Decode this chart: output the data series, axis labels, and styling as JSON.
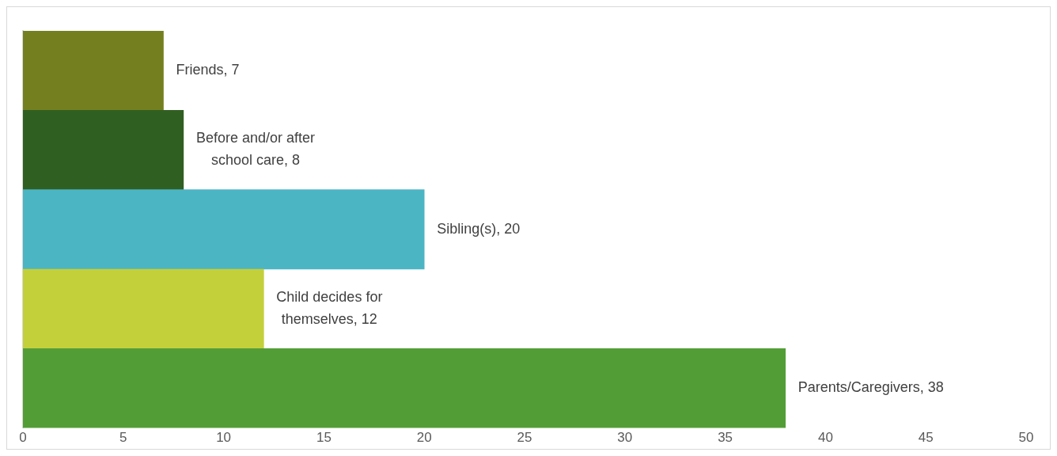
{
  "chart_data": {
    "type": "bar",
    "orientation": "horizontal",
    "categories": [
      null,
      null,
      null,
      null,
      null
    ],
    "value_labels": [
      "Friends, 7",
      "Before and/or after school care, 8",
      "Sibling(s), 20",
      "Child decides for themselves, 12",
      "Parents/Caregivers, 38"
    ],
    "values": [
      7,
      8,
      20,
      12,
      38
    ],
    "colors": [
      "#748020",
      "#305f22",
      "#4bb5c4",
      "#c4d03a",
      "#539d37"
    ],
    "xlim": [
      0,
      50
    ],
    "xticks": [
      0,
      5,
      10,
      15,
      20,
      25,
      30,
      35,
      40,
      45,
      50
    ],
    "tick_labels": "x",
    "grid": false,
    "legend": false
  }
}
